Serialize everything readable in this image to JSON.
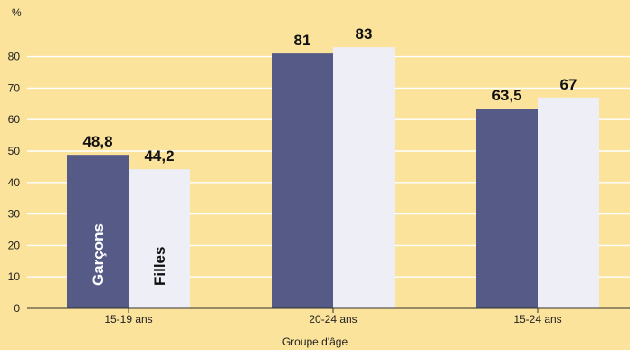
{
  "chart_data": {
    "type": "bar",
    "title": "",
    "ylabel": "%",
    "xlabel": "Groupe d'âge",
    "ylim": [
      0,
      90
    ],
    "yticks": [
      0,
      10,
      20,
      30,
      40,
      50,
      60,
      70,
      80
    ],
    "grid": true,
    "categories": [
      "15-19 ans",
      "20-24 ans",
      "15-24 ans"
    ],
    "series": [
      {
        "name": "Garçons",
        "color": "#565a86",
        "label_color": "#ffffff",
        "values": [
          48.8,
          81,
          63.5
        ],
        "labels": [
          "48,8",
          "81",
          "63,5"
        ]
      },
      {
        "name": "Filles",
        "color": "#eeeef6",
        "label_color": "#111111",
        "values": [
          44.2,
          83,
          67
        ],
        "labels": [
          "44,2",
          "83",
          "67"
        ]
      }
    ],
    "legend": "inside-first-group-bars"
  }
}
